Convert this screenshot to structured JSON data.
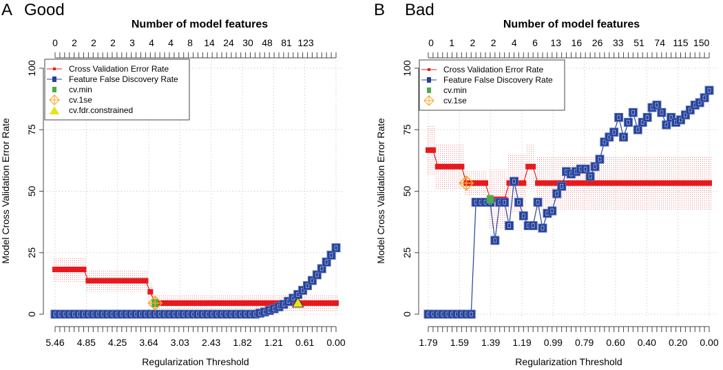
{
  "colors": {
    "cv": "#e8191d",
    "fdr": "#23409a",
    "cv_min": "#4aad4a",
    "cv_1se": "#f5a623",
    "cv_fdr": "#e8e21a"
  },
  "chart_data": [
    {
      "type": "line",
      "panel_letter": "A",
      "panel_title": "Good",
      "top_axis_title": "Number of model features",
      "top_tick_labels": [
        "0",
        "2",
        "2",
        "2",
        "3",
        "4",
        "4",
        "8",
        "14",
        "24",
        "30",
        "48",
        "81",
        "123"
      ],
      "xlabel": "Regularization Threshold",
      "x_tick_labels": [
        "5.46",
        "4.85",
        "4.25",
        "3.64",
        "3.03",
        "2.43",
        "1.82",
        "1.21",
        "0.61",
        "0.00"
      ],
      "ylabel": "Model Cross Validation Error Rate",
      "y_ticks": [
        "0",
        "25",
        "50",
        "75",
        "100"
      ],
      "ylim": [
        0,
        100
      ],
      "legend": [
        "Cross Validation Error Rate",
        "Feature False Discovery Rate",
        "cv.min",
        "cv.1se",
        "cv.fdr.constrained"
      ],
      "legend_position": "top-left",
      "n_points": 60,
      "cv_segments": [
        {
          "from": 0,
          "to": 6,
          "value": 18.2,
          "se": 5
        },
        {
          "from": 7,
          "to": 19,
          "value": 13.6,
          "se": 4.5
        },
        {
          "from": 20,
          "to": 20,
          "value": 9.1,
          "se": 4
        },
        {
          "from": 21,
          "to": 59,
          "value": 4.5,
          "se": 3.5
        }
      ],
      "fdr": [
        0,
        0,
        0,
        0,
        0,
        0,
        0,
        0,
        0,
        0,
        0,
        0,
        0,
        0,
        0,
        0,
        0,
        0,
        0,
        0,
        0,
        0,
        0,
        0,
        0,
        0,
        0,
        0,
        0,
        0,
        0,
        0,
        0,
        0,
        0,
        0,
        0,
        0,
        0,
        0,
        0,
        0,
        0,
        0.4,
        0.9,
        1.5,
        2.2,
        3,
        4,
        5.2,
        6.5,
        8,
        9.7,
        11.6,
        13.7,
        16,
        18.5,
        21.2,
        24,
        27
      ],
      "markers": {
        "cv_min": {
          "index": 21,
          "value": 4.5
        },
        "cv_1se": {
          "index": 21,
          "value": 4.5
        },
        "cv_fdr_constrained": {
          "index": 51,
          "value": 4.5
        }
      }
    },
    {
      "type": "line",
      "panel_letter": "B",
      "panel_title": "Bad",
      "top_axis_title": "Number of model features",
      "top_tick_labels": [
        "0",
        "1",
        "2",
        "2",
        "4",
        "6",
        "13",
        "16",
        "26",
        "33",
        "51",
        "74",
        "115",
        "150"
      ],
      "xlabel": "Regularization Threshold",
      "x_tick_labels": [
        "1.79",
        "1.59",
        "1.39",
        "1.19",
        "0.99",
        "0.79",
        "0.60",
        "0.40",
        "0.20",
        "0.00"
      ],
      "ylabel": "Model Cross Validation Error Rate",
      "y_ticks": [
        "0",
        "25",
        "50",
        "75",
        "100"
      ],
      "ylim": [
        0,
        100
      ],
      "legend": [
        "Cross Validation Error Rate",
        "Feature False Discovery Rate",
        "cv.min",
        "cv.1se"
      ],
      "legend_position": "top-left",
      "n_points": 60,
      "cv_segments": [
        {
          "from": 0,
          "to": 1,
          "value": 66.7,
          "se": 10
        },
        {
          "from": 2,
          "to": 7,
          "value": 60,
          "se": 9
        },
        {
          "from": 8,
          "to": 12,
          "value": 53.3,
          "se": 5
        },
        {
          "from": 13,
          "to": 16,
          "value": 46.7,
          "se": 12
        },
        {
          "from": 17,
          "to": 20,
          "value": 53.3,
          "se": 12
        },
        {
          "from": 21,
          "to": 22,
          "value": 60,
          "se": 9
        },
        {
          "from": 23,
          "to": 59,
          "value": 53.3,
          "se": 11
        }
      ],
      "fdr": [
        0,
        0,
        0,
        0,
        0,
        0,
        0,
        0,
        0,
        0,
        45.5,
        45.5,
        45.5,
        45.5,
        30,
        45.5,
        45.5,
        36,
        54,
        45.5,
        40,
        36,
        36,
        45.5,
        35,
        41,
        42,
        49,
        52,
        58,
        57,
        58,
        59,
        59,
        56,
        60,
        63,
        70,
        72,
        74,
        80,
        72,
        78,
        82,
        75,
        78,
        80,
        84,
        85,
        82,
        77,
        80,
        78,
        79,
        81,
        83,
        85,
        86,
        88,
        91
      ],
      "markers": {
        "cv_min": {
          "index": 13,
          "value": 46.7
        },
        "cv_1se": {
          "index": 8,
          "value": 53.3
        }
      }
    }
  ]
}
